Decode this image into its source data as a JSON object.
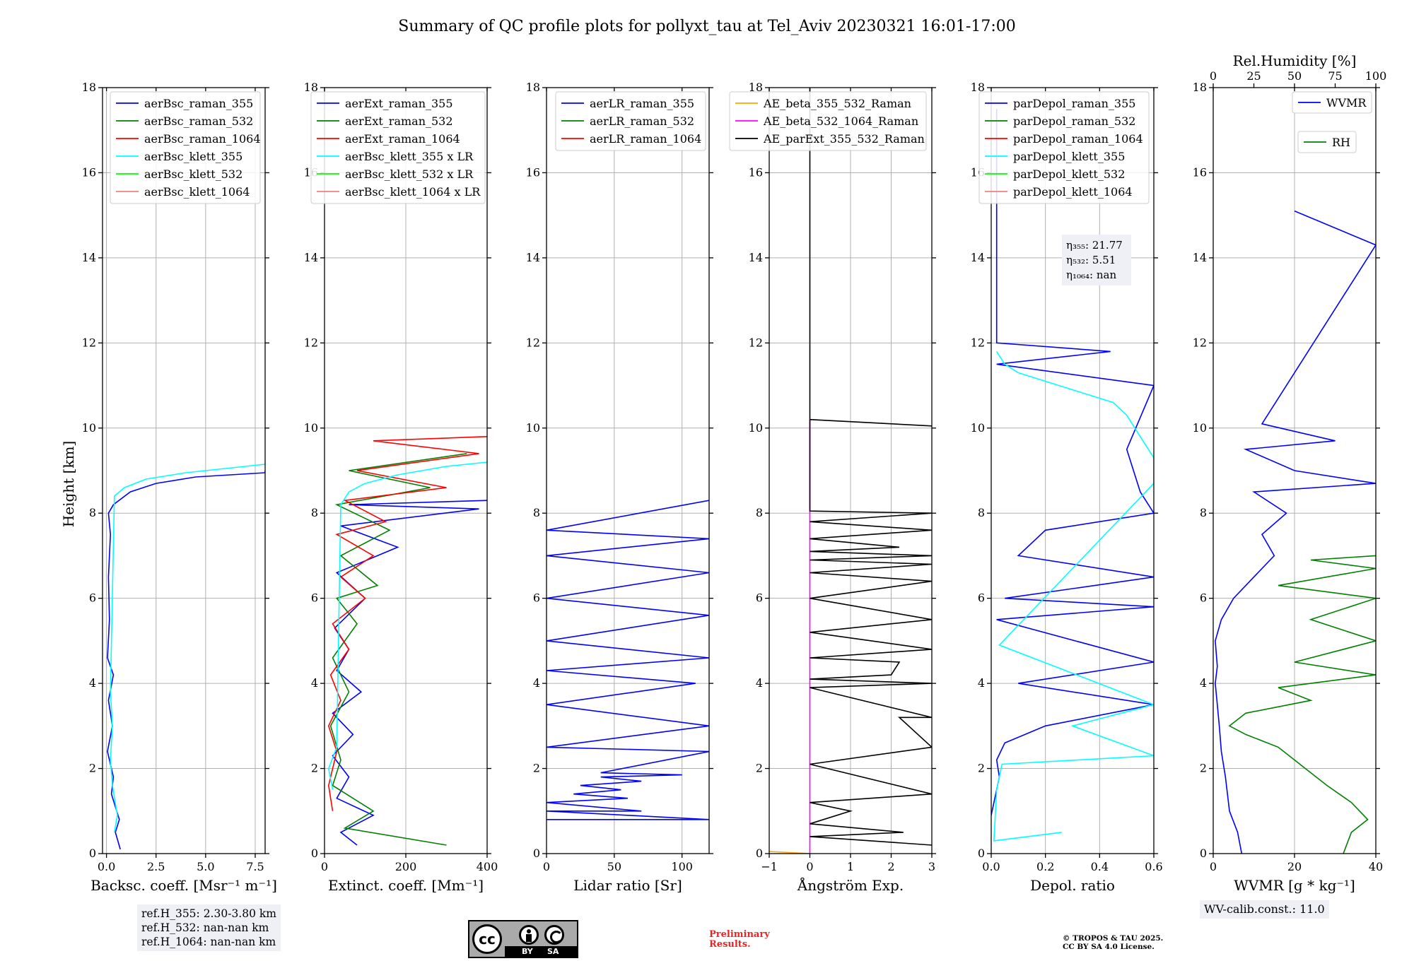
{
  "title": "Summary of QC profile plots for pollyxt_tau at Tel_Aviv 20230321 16:01-17:00",
  "ylabel": "Height [km]",
  "colors": {
    "blue": "#0000ff",
    "green": "#008000",
    "red": "#ff0000",
    "cyan": "#00ffff",
    "lime": "#00ff00",
    "salmon": "#f08080",
    "orange": "#ffa500",
    "magenta": "#ff00ff",
    "black": "#000000"
  },
  "chart_data": [
    {
      "type": "line",
      "xlabel": "Backsc. coeff. [Msr⁻¹ m⁻¹]",
      "xlim": [
        -0.2,
        8
      ],
      "xticks": [
        0,
        2.5,
        5,
        7.5
      ],
      "xticklabels": [
        "0.0",
        "2.5",
        "5.0",
        "7.5"
      ],
      "ylim": [
        0,
        18
      ],
      "yticks": [
        0,
        2,
        4,
        6,
        8,
        10,
        12,
        14,
        16,
        18
      ],
      "grid": true,
      "legend": "top",
      "series": [
        {
          "name": "aerBsc_raman_355",
          "color": "#0000ff",
          "x": [
            0.7,
            0.45,
            0.65,
            0.25,
            0.35,
            0.05,
            0.3,
            0.1,
            0.35,
            0.05,
            0.15,
            0.1,
            0.2,
            0.1,
            0.35,
            1.2,
            2.5,
            4.5,
            8,
            8
          ],
          "y": [
            0.1,
            0.5,
            0.8,
            1.4,
            1.8,
            2.4,
            3.0,
            3.6,
            4.2,
            4.6,
            5.5,
            6.5,
            7.5,
            8.0,
            8.2,
            8.5,
            8.7,
            8.85,
            8.95,
            9.0
          ]
        },
        {
          "name": "aerBsc_raman_532",
          "color": "#008000",
          "x": [],
          "y": []
        },
        {
          "name": "aerBsc_raman_1064",
          "color": "#ff0000",
          "x": [],
          "y": []
        },
        {
          "name": "aerBsc_klett_355",
          "color": "#00ffff",
          "x": [
            0.4,
            0.55,
            0.3,
            0.2,
            0.3,
            0.2,
            0.4,
            0.9,
            2,
            4,
            6,
            8
          ],
          "y": [
            0.5,
            0.9,
            1.6,
            2.2,
            3.0,
            3.8,
            8.4,
            8.6,
            8.8,
            8.95,
            9.05,
            9.15
          ]
        },
        {
          "name": "aerBsc_klett_532",
          "color": "#00ff00",
          "x": [],
          "y": []
        },
        {
          "name": "aerBsc_klett_1064",
          "color": "#f08080",
          "x": [],
          "y": []
        }
      ]
    },
    {
      "type": "line",
      "xlabel": "Extinct. coeff. [Mm⁻¹]",
      "xlim": [
        0,
        400
      ],
      "xticks": [
        0,
        200,
        400
      ],
      "xticklabels": [
        "0",
        "200",
        "400"
      ],
      "ylim": [
        0,
        18
      ],
      "yticks": [
        0,
        2,
        4,
        6,
        8,
        10,
        12,
        14,
        16,
        18
      ],
      "grid": true,
      "legend": "top",
      "series": [
        {
          "name": "aerExt_raman_355",
          "color": "#0000ff",
          "x": [
            80,
            40,
            120,
            30,
            60,
            20,
            70,
            20,
            90,
            30,
            60,
            25,
            100,
            30,
            180,
            40,
            380,
            60,
            400
          ],
          "y": [
            0.2,
            0.5,
            0.9,
            1.3,
            1.8,
            2.3,
            2.8,
            3.3,
            3.8,
            4.3,
            4.8,
            5.3,
            6.0,
            6.6,
            7.2,
            7.7,
            8.1,
            8.2,
            8.3
          ]
        },
        {
          "name": "aerExt_raman_532",
          "color": "#008000",
          "x": [
            300,
            50,
            120,
            20,
            40,
            15,
            60,
            20,
            80,
            30,
            130,
            40,
            160,
            30,
            260,
            60,
            350
          ],
          "y": [
            0.2,
            0.6,
            1.0,
            1.6,
            2.2,
            3.0,
            3.8,
            4.6,
            5.4,
            6.0,
            6.3,
            7.0,
            7.6,
            8.2,
            8.6,
            9.0,
            9.4
          ]
        },
        {
          "name": "aerExt_raman_1064",
          "color": "#ff0000",
          "x": [
            20,
            10,
            30,
            10,
            40,
            15,
            60,
            20,
            100,
            40,
            120,
            30,
            150,
            50,
            300,
            80,
            380,
            120,
            400
          ],
          "y": [
            1.0,
            1.6,
            2.4,
            3.0,
            3.6,
            4.2,
            4.8,
            5.4,
            6.0,
            6.5,
            7.0,
            7.5,
            7.8,
            8.3,
            8.6,
            9.0,
            9.4,
            9.7,
            9.8
          ]
        },
        {
          "name": "aerBsc_klett_355 x LR",
          "color": "#00ffff",
          "x": [
            20,
            10,
            30,
            40,
            60,
            100,
            180,
            300,
            400
          ],
          "y": [
            1.5,
            2.0,
            2.5,
            8.2,
            8.5,
            8.7,
            8.9,
            9.1,
            9.2
          ]
        },
        {
          "name": "aerBsc_klett_532 x LR",
          "color": "#00ff00",
          "x": [],
          "y": []
        },
        {
          "name": "aerBsc_klett_1064 x LR",
          "color": "#f08080",
          "x": [],
          "y": []
        }
      ]
    },
    {
      "type": "line",
      "xlabel": "Lidar ratio [Sr]",
      "xlim": [
        0,
        120
      ],
      "xticks": [
        0,
        50,
        100
      ],
      "xticklabels": [
        "0",
        "50",
        "100"
      ],
      "ylim": [
        0,
        18
      ],
      "yticks": [
        0,
        2,
        4,
        6,
        8,
        10,
        12,
        14,
        16,
        18
      ],
      "grid": true,
      "legend": "top",
      "series": [
        {
          "name": "aerLR_raman_355",
          "color": "#0000ff",
          "x": [
            0,
            120,
            0,
            70,
            0,
            60,
            20,
            55,
            25,
            70,
            40,
            100,
            40,
            120,
            0,
            120,
            0,
            110,
            0,
            120,
            0,
            120,
            0,
            120,
            0,
            120,
            0,
            120
          ],
          "y": [
            0.8,
            0.8,
            1.0,
            1.0,
            1.2,
            1.3,
            1.4,
            1.5,
            1.6,
            1.7,
            1.8,
            1.85,
            1.9,
            2.4,
            2.5,
            3.0,
            3.5,
            4.0,
            4.3,
            4.6,
            5.0,
            5.6,
            6.0,
            6.6,
            7.0,
            7.4,
            7.6,
            8.3
          ]
        },
        {
          "name": "aerLR_raman_532",
          "color": "#008000",
          "x": [],
          "y": []
        },
        {
          "name": "aerLR_raman_1064",
          "color": "#ff0000",
          "x": [],
          "y": []
        }
      ]
    },
    {
      "type": "line",
      "xlabel": "Ångström Exp.",
      "xlim": [
        -1,
        3
      ],
      "xticks": [
        -1,
        0,
        1,
        2,
        3
      ],
      "xticklabels": [
        "−1",
        "0",
        "1",
        "2",
        "3"
      ],
      "ylim": [
        0,
        18
      ],
      "yticks": [
        0,
        2,
        4,
        6,
        8,
        10,
        12,
        14,
        16,
        18
      ],
      "grid": true,
      "legend": "top",
      "series": [
        {
          "name": "AE_beta_355_532_Raman",
          "color": "#ffa500",
          "x": [
            -1,
            0
          ],
          "y": [
            0.05,
            0.0
          ]
        },
        {
          "name": "AE_beta_532_1064_Raman",
          "color": "#ff00ff",
          "x": [
            0,
            0
          ],
          "y": [
            0,
            10.2
          ]
        },
        {
          "name": "AE_parExt_355_532_Raman",
          "color": "#000000",
          "x": [
            3,
            0,
            2.3,
            0,
            1,
            0,
            3,
            0,
            3,
            2.2,
            3,
            0,
            3,
            0,
            2,
            2.2,
            0,
            3,
            0,
            3,
            0,
            3,
            0,
            3,
            0,
            3,
            0,
            2.2,
            0,
            3,
            0,
            3,
            0,
            0,
            3,
            0,
            0
          ],
          "y": [
            0.2,
            0.4,
            0.5,
            0.7,
            1.0,
            1.2,
            1.4,
            2.1,
            2.5,
            3.2,
            3.2,
            3.9,
            4.0,
            4.1,
            4.2,
            4.5,
            4.6,
            4.8,
            5.2,
            5.5,
            6.0,
            6.4,
            6.6,
            6.8,
            6.9,
            7.0,
            7.1,
            7.2,
            7.4,
            7.6,
            7.8,
            8.0,
            8.05,
            10.2,
            10.05,
            10.2,
            18
          ]
        }
      ]
    },
    {
      "type": "line",
      "xlabel": "Depol. ratio",
      "xlim": [
        0,
        0.6
      ],
      "xticks": [
        0,
        0.2,
        0.4,
        0.6
      ],
      "xticklabels": [
        "0.0",
        "0.2",
        "0.4",
        "0.6"
      ],
      "ylim": [
        0,
        18
      ],
      "yticks": [
        0,
        2,
        4,
        6,
        8,
        10,
        12,
        14,
        16,
        18
      ],
      "grid": true,
      "legend": "top",
      "annotation": [
        "η₃₅₅: 21.77",
        "η₅₃₂: 5.51",
        "η₁₀₆₄: nan"
      ],
      "series": [
        {
          "name": "parDepol_raman_355",
          "color": "#0000ff",
          "x": [
            0,
            0.03,
            0.02,
            0.05,
            0.2,
            0.6,
            0.1,
            0.6,
            0.02,
            0.6,
            0.05,
            0.6,
            0.1,
            0.2,
            0.6,
            0.55,
            0.5,
            0.6,
            0.02,
            0.44,
            0.02,
            0.02,
            0.02,
            0.02
          ],
          "y": [
            0.9,
            1.8,
            2.2,
            2.6,
            3.0,
            3.5,
            4.0,
            4.5,
            5.5,
            5.8,
            6.0,
            6.5,
            7.0,
            7.6,
            8.0,
            8.5,
            9.5,
            11.0,
            11.5,
            11.8,
            12.0,
            13.0,
            14.0,
            17.5
          ]
        },
        {
          "name": "parDepol_raman_532",
          "color": "#008000",
          "x": [],
          "y": []
        },
        {
          "name": "parDepol_raman_1064",
          "color": "#ff0000",
          "x": [],
          "y": []
        },
        {
          "name": "parDepol_klett_355",
          "color": "#00ffff",
          "x": [
            0.26,
            0.01,
            0.02,
            0.04,
            0.6,
            0.3,
            0.6,
            0.03,
            0.6,
            0.6,
            0.55,
            0.5,
            0.45,
            0.3,
            0.1,
            0.05,
            0.02
          ],
          "y": [
            0.5,
            0.3,
            1.5,
            2.1,
            2.3,
            3.0,
            3.5,
            4.9,
            8.7,
            9.3,
            9.8,
            10.3,
            10.6,
            10.9,
            11.3,
            11.5,
            11.8
          ]
        },
        {
          "name": "parDepol_klett_532",
          "color": "#00ff00",
          "x": [],
          "y": []
        },
        {
          "name": "parDepol_klett_1064",
          "color": "#f08080",
          "x": [],
          "y": []
        }
      ]
    },
    {
      "type": "line",
      "xlabel": "WVMR [g * kg⁻¹]",
      "xlim": [
        0,
        40
      ],
      "xticks": [
        0,
        20,
        40
      ],
      "xticklabels": [
        "0",
        "20",
        "40"
      ],
      "x2label": "Rel.Humidity [%]",
      "x2lim": [
        0,
        100
      ],
      "x2ticks": [
        0,
        25,
        50,
        75,
        100
      ],
      "ylim": [
        0,
        18
      ],
      "yticks": [
        0,
        2,
        4,
        6,
        8,
        10,
        12,
        14,
        16,
        18
      ],
      "grid": true,
      "legend": "top-right",
      "series": [
        {
          "name": "WVMR",
          "color": "#0000ff",
          "x": [
            7,
            6,
            4,
            3,
            2,
            1.5,
            1,
            0.5,
            1,
            0.5,
            2,
            5,
            10,
            15,
            12,
            18,
            10,
            40,
            20,
            8,
            30,
            12,
            40,
            20
          ],
          "y": [
            0.0,
            0.5,
            1.0,
            1.8,
            2.4,
            3.0,
            3.5,
            4.0,
            4.4,
            5.0,
            5.5,
            6.0,
            6.5,
            7.0,
            7.5,
            8.0,
            8.5,
            8.7,
            9.0,
            9.5,
            9.7,
            10.1,
            14.3,
            15.1
          ]
        },
        {
          "name": "RH",
          "color": "#008000",
          "x": [
            80,
            85,
            95,
            85,
            70,
            60,
            50,
            40,
            20,
            10,
            20,
            60,
            40,
            100,
            50,
            100,
            60,
            100,
            40,
            100,
            60,
            100
          ],
          "y": [
            0,
            0.5,
            0.8,
            1.2,
            1.6,
            1.9,
            2.2,
            2.5,
            2.8,
            3.0,
            3.3,
            3.6,
            3.9,
            4.2,
            4.5,
            5.0,
            5.5,
            6.0,
            6.3,
            6.7,
            6.9,
            7.0
          ]
        }
      ]
    }
  ],
  "boxes": {
    "refh": [
      "ref.H_355: 2.30-3.80 km",
      "ref.H_532: nan-nan km",
      "ref.H_1064: nan-nan km"
    ],
    "wvcalib": "WV-calib.const.: 11.0"
  },
  "footer": {
    "cc": "cc",
    "by": "BY",
    "sa": "SA",
    "preliminary": [
      "Preliminary",
      "Results."
    ],
    "copyright": [
      "© TROPOS & TAU 2025.",
      "CC BY SA 4.0 License."
    ]
  }
}
